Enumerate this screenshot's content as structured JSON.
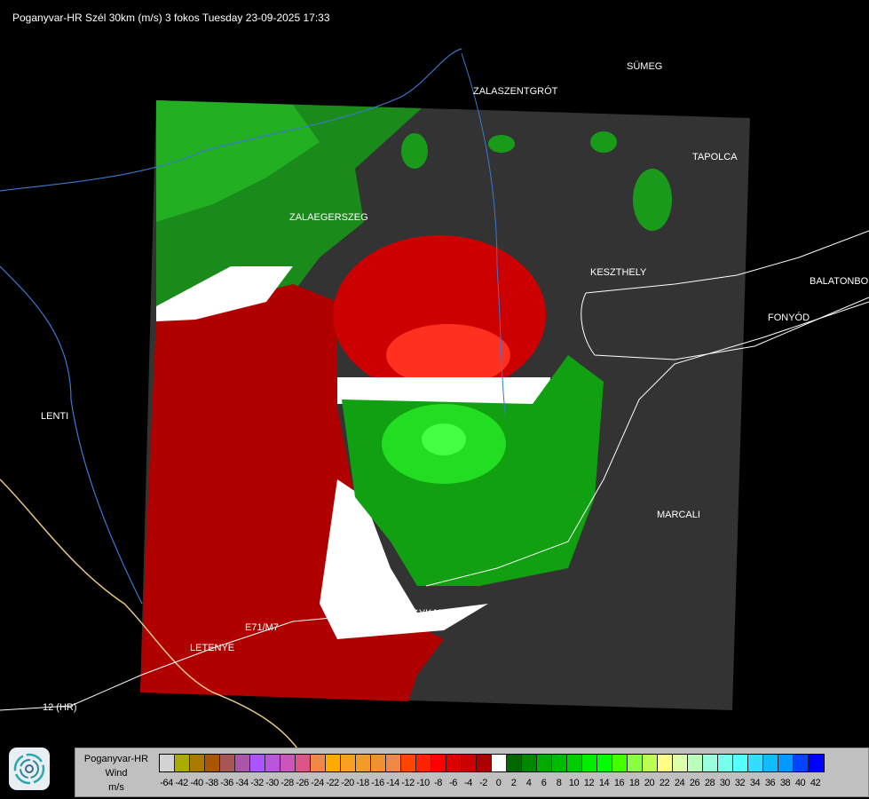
{
  "title": "Poganyvar-HR Szél 30km (m/s) 3 fokos Tuesday 23-09-2025 17:33",
  "cities": [
    {
      "name": "SÜMEG"
    },
    {
      "name": "ZALASZENTGRÓT"
    },
    {
      "name": "TAPOLCA"
    },
    {
      "name": "ZALAEGERSZEG"
    },
    {
      "name": "KESZTHELY"
    },
    {
      "name": "BALATONBO"
    },
    {
      "name": "FONYÓD"
    },
    {
      "name": "LENTI"
    },
    {
      "name": "MARCALI"
    },
    {
      "name": "NAGYKANIZSA"
    },
    {
      "name": "LETENYE"
    },
    {
      "name": "E71/M7"
    },
    {
      "name": "12 (HR)"
    }
  ],
  "legend": {
    "station": "Poganyvar-HR",
    "quantity": "Wind",
    "unit": "m/s",
    "ticks": [
      "-64",
      "-42",
      "-40",
      "-38",
      "-36",
      "-34",
      "-32",
      "-30",
      "-28",
      "-26",
      "-24",
      "-22",
      "-20",
      "-18",
      "-16",
      "-14",
      "-12",
      "-10",
      "-8",
      "-6",
      "-4",
      "-2",
      "0",
      "2",
      "4",
      "6",
      "8",
      "10",
      "12",
      "14",
      "16",
      "18",
      "20",
      "22",
      "24",
      "26",
      "28",
      "30",
      "32",
      "34",
      "36",
      "38",
      "40",
      "42"
    ],
    "colors": [
      "#d3d3d3",
      "#aaaa00",
      "#aa7a00",
      "#aa5500",
      "#a85555",
      "#aa55aa",
      "#aa55ff",
      "#bb55dd",
      "#cc55bb",
      "#dd5588",
      "#ee8844",
      "#ffaa00",
      "#f8a020",
      "#f49a28",
      "#f09030",
      "#ee8844",
      "#ff4400",
      "#ff2200",
      "#ff0000",
      "#dd0000",
      "#cc0000",
      "#aa0000",
      "#ffffff",
      "#006600",
      "#008800",
      "#00aa00",
      "#00bb00",
      "#00cc00",
      "#00ee00",
      "#00ff00",
      "#44ff00",
      "#88ff44",
      "#bbff55",
      "#ffff88",
      "#ddffaa",
      "#bbffbb",
      "#99ffdd",
      "#77ffee",
      "#55ffff",
      "#33ddff",
      "#11bbff",
      "#0099ff",
      "#0044ff",
      "#0000ff"
    ]
  },
  "colors": {
    "no_data": "#333333",
    "background": "#000000",
    "river": "#3a78d0",
    "border": "#e8c880",
    "road": "#ffffff"
  }
}
